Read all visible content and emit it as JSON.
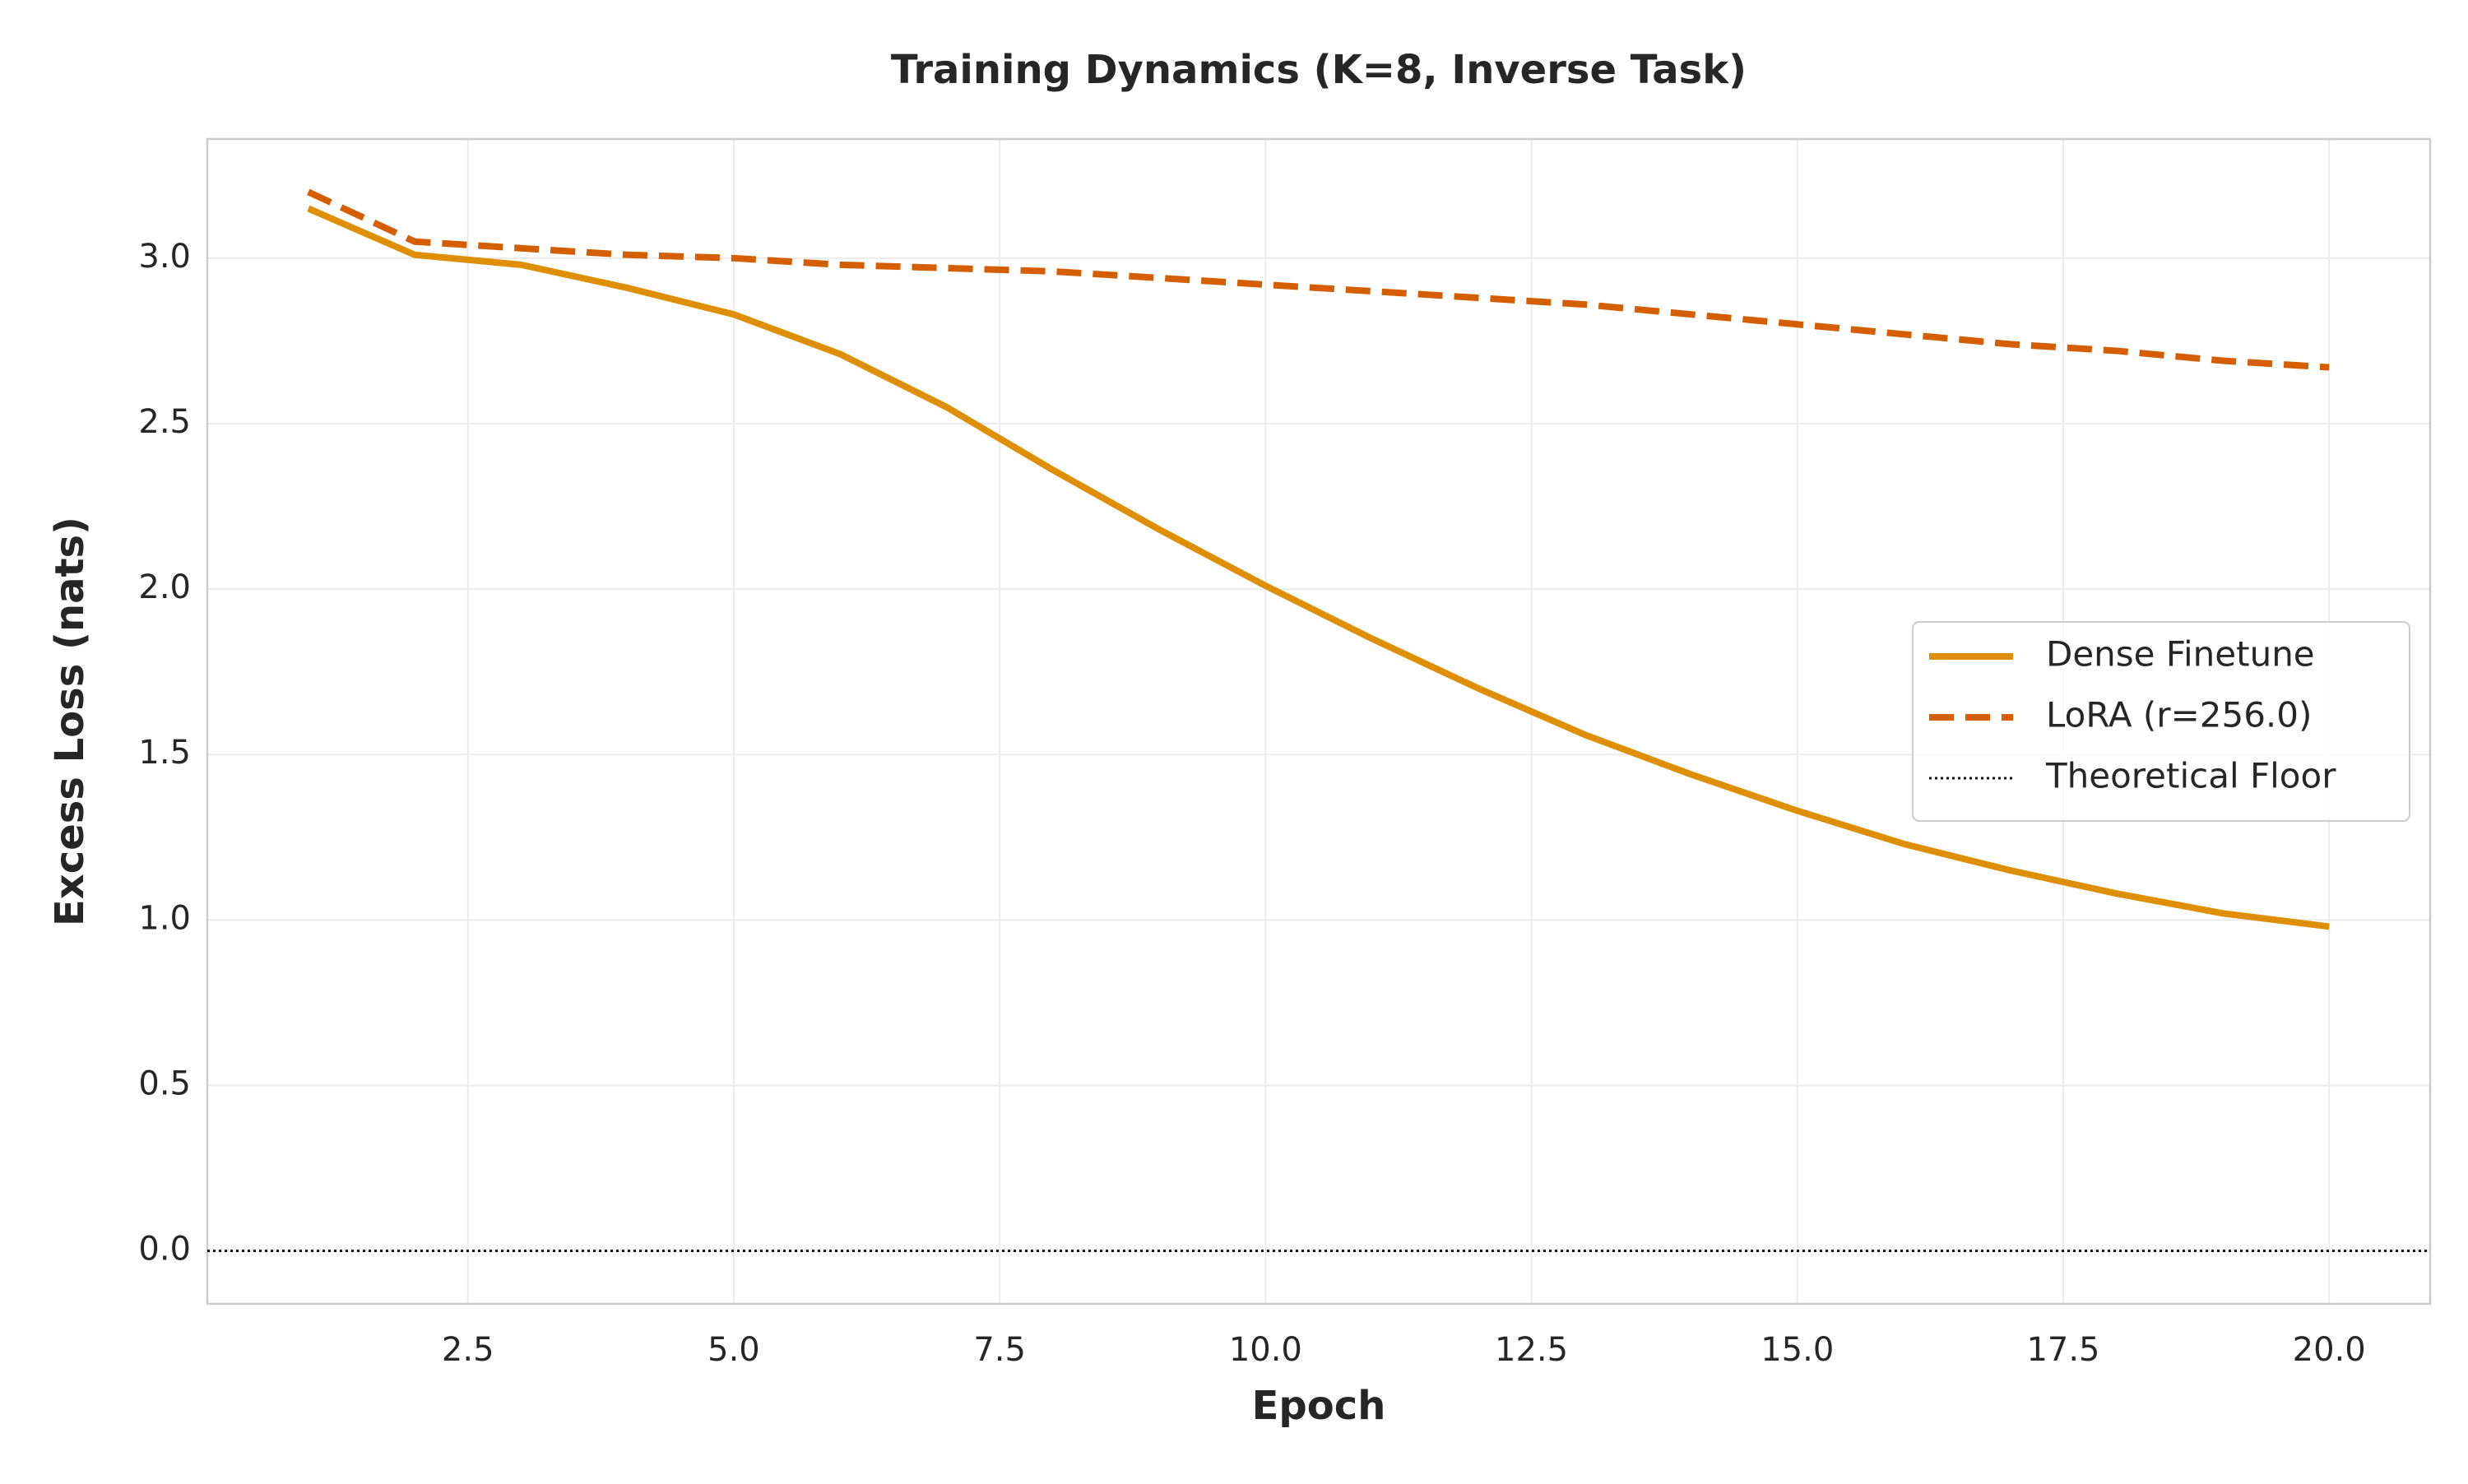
{
  "chart_data": {
    "type": "line",
    "title": "Training Dynamics (K=8, Inverse Task)",
    "x_label": "Epoch",
    "y_label": "Excess Loss (nats)",
    "x": [
      1,
      2,
      3,
      4,
      5,
      6,
      7,
      8,
      9,
      10,
      11,
      12,
      13,
      14,
      15,
      16,
      17,
      18,
      19,
      20
    ],
    "series": [
      {
        "name": "Dense Finetune",
        "color": "#de8f05",
        "dash": "solid",
        "values": [
          3.15,
          3.01,
          2.98,
          2.91,
          2.83,
          2.71,
          2.55,
          2.36,
          2.18,
          2.01,
          1.85,
          1.7,
          1.56,
          1.44,
          1.33,
          1.23,
          1.15,
          1.08,
          1.02,
          0.98
        ]
      },
      {
        "name": "LoRA (r=256.0)",
        "color": "#d55e00",
        "dash": "dashed",
        "values": [
          3.2,
          3.05,
          3.03,
          3.01,
          3.0,
          2.98,
          2.97,
          2.96,
          2.94,
          2.92,
          2.9,
          2.88,
          2.86,
          2.83,
          2.8,
          2.77,
          2.74,
          2.72,
          2.69,
          2.67
        ]
      }
    ],
    "reference_lines": [
      {
        "name": "Theoretical Floor",
        "value": 0,
        "color": "#111111",
        "dash": "dotted"
      }
    ],
    "xlim": [
      0.05,
      20.95
    ],
    "ylim": [
      -0.16,
      3.36
    ],
    "xticks": [
      2.5,
      {
        "value": 5,
        "label": "5.0"
      },
      7.5,
      {
        "value": 10,
        "label": "10.0"
      },
      12.5,
      {
        "value": 15,
        "label": "15.0"
      },
      17.5,
      {
        "value": 20,
        "label": "20.0"
      }
    ],
    "yticks": [
      {
        "value": 0,
        "label": "0.0"
      },
      0.5,
      {
        "value": 1,
        "label": "1.0"
      },
      1.5,
      {
        "value": 2,
        "label": "2.0"
      },
      2.5,
      {
        "value": 3,
        "label": "3.0"
      }
    ],
    "grid": true,
    "legend": "center right"
  }
}
